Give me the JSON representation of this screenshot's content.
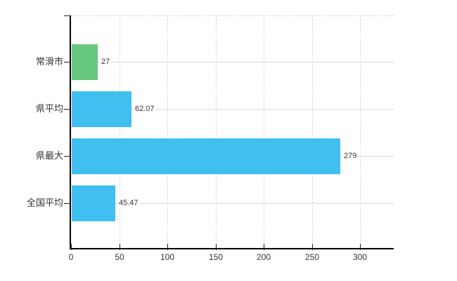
{
  "chart_data": {
    "type": "bar",
    "orientation": "horizontal",
    "title": "",
    "categories": [
      "常滑市",
      "県平均",
      "県最大",
      "全国平均"
    ],
    "values": [
      27,
      62.07,
      279,
      45.47
    ],
    "value_labels": [
      "27",
      "62.07",
      "279",
      "45.47"
    ],
    "bar_colors": [
      "#68c77e",
      "#3fc0f0",
      "#3fc0f0",
      "#3fc0f0"
    ],
    "x_tick_labels": [
      "0",
      "50",
      "100",
      "150",
      "200",
      "250",
      "300"
    ],
    "x_tick_values": [
      0,
      50,
      100,
      150,
      200,
      250,
      300
    ],
    "xlim": [
      0,
      335
    ],
    "grid": true,
    "legend": "none",
    "colors": {
      "highlight_bar": "#68c77e",
      "default_bar": "#3fc0f0",
      "gridline": "#d9d9d9",
      "axis": "#000000",
      "text": "#333333",
      "background": "#ffffff"
    }
  }
}
